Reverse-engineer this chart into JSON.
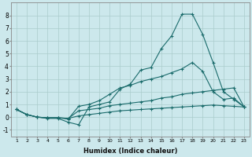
{
  "xlabel": "Humidex (Indice chaleur)",
  "background_color": "#cce8ec",
  "grid_color": "#aacccc",
  "line_color": "#1a6b6b",
  "xlim": [
    0.5,
    23.5
  ],
  "ylim": [
    -1.5,
    9.0
  ],
  "series": [
    {
      "x": [
        1,
        2,
        3,
        4,
        5,
        6,
        7,
        8,
        9,
        10,
        11,
        12,
        13,
        14,
        15,
        16,
        17,
        18,
        19,
        20,
        21,
        22,
        23
      ],
      "y": [
        0.6,
        0.2,
        0.0,
        -0.1,
        -0.1,
        -0.4,
        -0.6,
        0.8,
        1.0,
        1.2,
        2.2,
        2.6,
        3.7,
        3.9,
        5.4,
        6.4,
        8.1,
        8.1,
        6.5,
        4.3,
        2.0,
        1.4,
        0.8
      ]
    },
    {
      "x": [
        1,
        2,
        3,
        4,
        5,
        6,
        7,
        8,
        9,
        10,
        11,
        12,
        13,
        14,
        15,
        16,
        17,
        18,
        19,
        20,
        21,
        22,
        23
      ],
      "y": [
        0.6,
        0.2,
        0.0,
        -0.05,
        -0.05,
        -0.15,
        0.85,
        1.0,
        1.3,
        1.8,
        2.3,
        2.5,
        2.8,
        3.0,
        3.2,
        3.5,
        3.8,
        4.3,
        3.6,
        2.0,
        1.4,
        1.5,
        0.8
      ]
    },
    {
      "x": [
        1,
        2,
        3,
        4,
        5,
        6,
        7,
        8,
        9,
        10,
        11,
        12,
        13,
        14,
        15,
        16,
        17,
        18,
        19,
        20,
        21,
        22,
        23
      ],
      "y": [
        0.6,
        0.2,
        0.0,
        -0.05,
        -0.05,
        -0.1,
        0.5,
        0.6,
        0.7,
        0.9,
        1.0,
        1.1,
        1.2,
        1.3,
        1.5,
        1.6,
        1.8,
        1.9,
        2.0,
        2.1,
        2.2,
        2.3,
        0.8
      ]
    },
    {
      "x": [
        1,
        2,
        3,
        4,
        5,
        6,
        7,
        8,
        9,
        10,
        11,
        12,
        13,
        14,
        15,
        16,
        17,
        18,
        19,
        20,
        21,
        22,
        23
      ],
      "y": [
        0.6,
        0.2,
        0.0,
        -0.05,
        -0.05,
        -0.1,
        0.1,
        0.2,
        0.3,
        0.4,
        0.5,
        0.55,
        0.6,
        0.65,
        0.7,
        0.75,
        0.8,
        0.85,
        0.9,
        0.95,
        0.9,
        0.85,
        0.8
      ]
    }
  ]
}
